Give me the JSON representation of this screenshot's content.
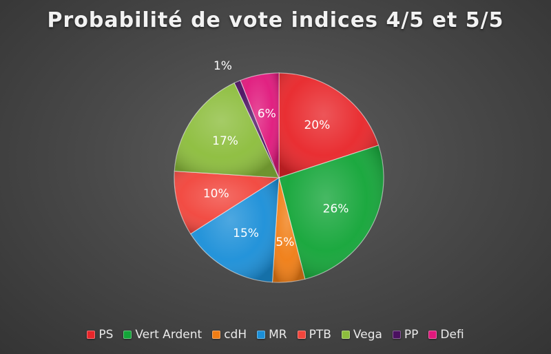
{
  "chart_data": {
    "type": "pie",
    "title": "Probabilité de vote indices 4/5 et 5/5",
    "legend_position": "bottom",
    "slices": [
      {
        "label": "PS",
        "value": 20,
        "value_label": "20%",
        "color": "#e8262a"
      },
      {
        "label": "Vert Ardent",
        "value": 26,
        "value_label": "26%",
        "color": "#13a538"
      },
      {
        "label": "cdH",
        "value": 5,
        "value_label": "5%",
        "color": "#f07d14"
      },
      {
        "label": "MR",
        "value": 15,
        "value_label": "15%",
        "color": "#1b8fd8"
      },
      {
        "label": "PTB",
        "value": 10,
        "value_label": "10%",
        "color": "#f1453c"
      },
      {
        "label": "Vega",
        "value": 17,
        "value_label": "17%",
        "color": "#8cbd3c"
      },
      {
        "label": "PP",
        "value": 1,
        "value_label": "1%",
        "color": "#4a1060"
      },
      {
        "label": "Defi",
        "value": 6,
        "value_label": "6%",
        "color": "#e0187c"
      }
    ]
  }
}
